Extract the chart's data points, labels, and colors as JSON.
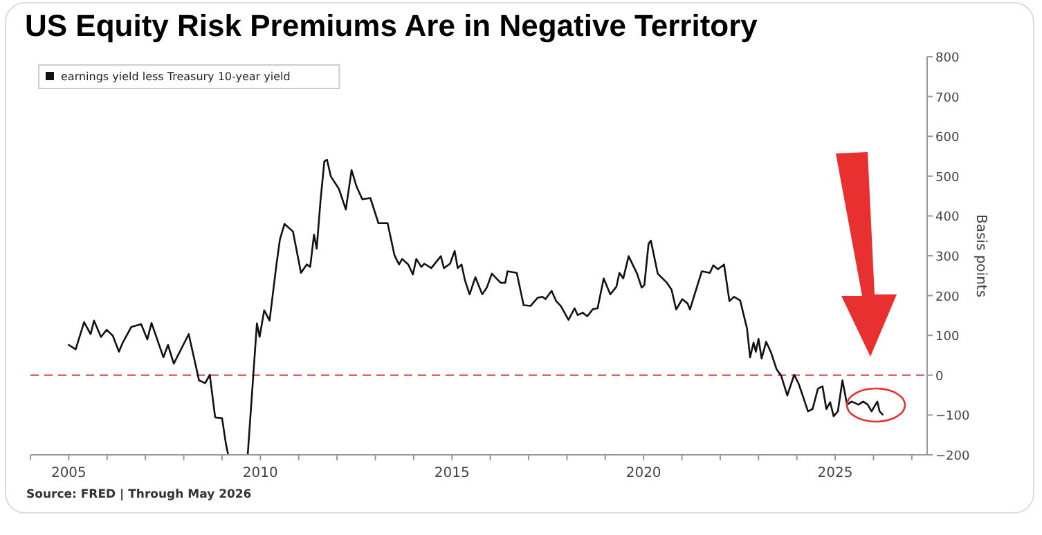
{
  "chart_data": {
    "type": "line",
    "title": "US Equity Risk Premiums Are in Negative Territory",
    "ylabel": "Basis points",
    "annotations": [
      "Source: FRED  |  Through May 2026"
    ],
    "xlim": [
      2004,
      2027.4
    ],
    "xticks": [
      {
        "value": 2004,
        "label": null
      },
      2005,
      {
        "value": 2006,
        "label": null
      },
      {
        "value": 2007,
        "label": null
      },
      {
        "value": 2008,
        "label": null
      },
      {
        "value": 2009,
        "label": null
      },
      2010,
      {
        "value": 2011,
        "label": null
      },
      {
        "value": 2012,
        "label": null
      },
      {
        "value": 2013,
        "label": null
      },
      {
        "value": 2014,
        "label": null
      },
      2015,
      {
        "value": 2016,
        "label": null
      },
      {
        "value": 2017,
        "label": null
      },
      {
        "value": 2018,
        "label": null
      },
      {
        "value": 2019,
        "label": null
      },
      2020,
      {
        "value": 2021,
        "label": null
      },
      {
        "value": 2022,
        "label": null
      },
      {
        "value": 2023,
        "label": null
      },
      {
        "value": 2024,
        "label": null
      },
      2025,
      {
        "value": 2026,
        "label": null
      },
      {
        "value": 2027,
        "label": null
      }
    ],
    "ylim": [
      -200,
      800
    ],
    "yticks": [
      -200,
      -100,
      0,
      100,
      200,
      300,
      400,
      500,
      600,
      700,
      800
    ],
    "grid": false,
    "legend": "top left",
    "marker": "none",
    "line_style": "solid",
    "ref_lines": [
      {
        "axis": "y",
        "value": 0,
        "color": "#e06666",
        "line_style": "dashed"
      }
    ],
    "series": [
      {
        "name": "earnings yield less Treasury 10-year yield",
        "color": "#111111",
        "x": [
          2005.0,
          2005.18,
          2005.4,
          2005.57,
          2005.66,
          2005.84,
          2005.99,
          2006.15,
          2006.31,
          2006.41,
          2006.63,
          2006.89,
          2007.05,
          2007.16,
          2007.47,
          2007.59,
          2007.74,
          2008.13,
          2008.4,
          2008.56,
          2008.68,
          2008.82,
          2009.0,
          2009.1,
          2009.16,
          2009.4,
          2009.67,
          2009.91,
          2009.98,
          2010.1,
          2010.24,
          2010.42,
          2010.51,
          2010.63,
          2010.85,
          2011.06,
          2011.21,
          2011.3,
          2011.4,
          2011.47,
          2011.57,
          2011.67,
          2011.74,
          2011.84,
          2012.05,
          2012.23,
          2012.38,
          2012.51,
          2012.66,
          2012.87,
          2013.08,
          2013.32,
          2013.5,
          2013.62,
          2013.7,
          2013.86,
          2013.98,
          2014.07,
          2014.2,
          2014.28,
          2014.46,
          2014.71,
          2014.79,
          2014.95,
          2015.07,
          2015.15,
          2015.25,
          2015.34,
          2015.46,
          2015.61,
          2015.79,
          2015.91,
          2016.04,
          2016.27,
          2016.39,
          2016.45,
          2016.69,
          2016.87,
          2017.05,
          2017.23,
          2017.36,
          2017.44,
          2017.6,
          2017.72,
          2017.84,
          2018.04,
          2018.2,
          2018.28,
          2018.41,
          2018.53,
          2018.68,
          2018.8,
          2018.96,
          2019.13,
          2019.29,
          2019.37,
          2019.47,
          2019.61,
          2019.83,
          2019.95,
          2020.02,
          2020.13,
          2020.19,
          2020.37,
          2020.61,
          2020.73,
          2020.85,
          2021.01,
          2021.15,
          2021.21,
          2021.52,
          2021.73,
          2021.82,
          2021.94,
          2022.1,
          2022.24,
          2022.36,
          2022.52,
          2022.7,
          2022.78,
          2022.87,
          2022.93,
          2023.0,
          2023.08,
          2023.2,
          2023.33,
          2023.47,
          2023.59,
          2023.75,
          2023.93,
          2024.05,
          2024.17,
          2024.29,
          2024.41,
          2024.55,
          2024.67,
          2024.77,
          2024.87,
          2024.96,
          2025.07,
          2025.19,
          2025.31,
          2025.43,
          2025.61,
          2025.73,
          2025.85,
          2025.95,
          2026.1,
          2026.16,
          2026.24
        ],
        "values": [
          76,
          65,
          133,
          103,
          137,
          96,
          114,
          99,
          59,
          82,
          121,
          128,
          90,
          131,
          45,
          76,
          29,
          103,
          -13,
          -20,
          1,
          -106,
          -108,
          -172,
          -200,
          null,
          -200,
          130,
          96,
          163,
          137,
          278,
          341,
          380,
          361,
          257,
          278,
          272,
          353,
          318,
          439,
          537,
          541,
          499,
          468,
          416,
          515,
          474,
          442,
          445,
          382,
          382,
          301,
          278,
          292,
          278,
          253,
          292,
          272,
          280,
          269,
          299,
          269,
          280,
          312,
          269,
          278,
          238,
          203,
          246,
          203,
          220,
          255,
          232,
          232,
          261,
          257,
          176,
          174,
          194,
          197,
          191,
          212,
          186,
          174,
          139,
          168,
          151,
          157,
          148,
          166,
          168,
          243,
          203,
          222,
          257,
          243,
          299,
          255,
          220,
          226,
          330,
          338,
          255,
          232,
          215,
          165,
          191,
          180,
          165,
          261,
          257,
          276,
          266,
          278,
          186,
          197,
          188,
          117,
          45,
          82,
          59,
          91,
          42,
          84,
          56,
          15,
          -1,
          -51,
          1,
          -22,
          -56,
          -91,
          -85,
          -34,
          -28,
          -85,
          -68,
          -103,
          -91,
          -13,
          -74,
          -66,
          -74,
          -66,
          -74,
          -91,
          -66,
          -91,
          -99
        ]
      }
    ]
  }
}
